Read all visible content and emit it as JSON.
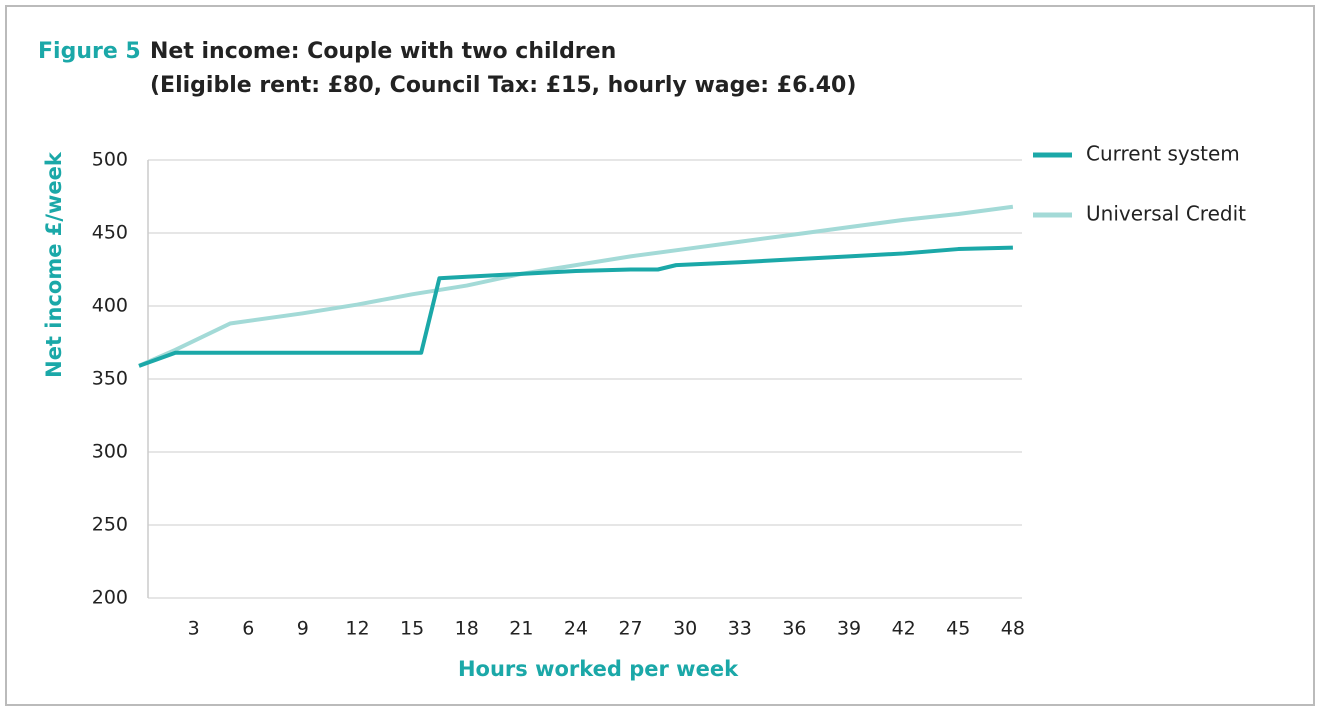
{
  "chart_data": {
    "type": "line",
    "figure_label": "Figure 5",
    "title": "Net income: Couple with two children",
    "subtitle": "(Eligible rent: £80, Council Tax: £15, hourly wage: £6.40)",
    "xlabel": "Hours worked per week",
    "ylabel": "Net income £/week",
    "xlim": [
      0,
      48.5
    ],
    "xticks": [
      3,
      6,
      9,
      12,
      15,
      18,
      21,
      24,
      27,
      30,
      33,
      36,
      39,
      42,
      45,
      48
    ],
    "ylim": [
      200,
      500
    ],
    "yticks": [
      200,
      250,
      300,
      350,
      400,
      450,
      500
    ],
    "grid": true,
    "legend": "right",
    "series": [
      {
        "name": "Current system",
        "color": "#1ba8a8",
        "x": [
          0,
          2,
          15.5,
          16.5,
          18,
          21,
          24,
          27,
          28.5,
          29.5,
          33,
          36,
          39,
          42,
          45,
          48
        ],
        "values": [
          359,
          368,
          368,
          419,
          420,
          422,
          424,
          425,
          425,
          428,
          430,
          432,
          434,
          436,
          439,
          440
        ]
      },
      {
        "name": "Universal Credit",
        "color": "#a3dad7",
        "x": [
          0,
          2,
          5,
          9,
          12,
          15,
          18,
          21,
          24,
          27,
          30,
          33,
          36,
          39,
          42,
          45,
          48
        ],
        "values": [
          359,
          370,
          388,
          395,
          401,
          408,
          414,
          422,
          428,
          434,
          439,
          444,
          449,
          454,
          459,
          463,
          468
        ]
      }
    ]
  }
}
